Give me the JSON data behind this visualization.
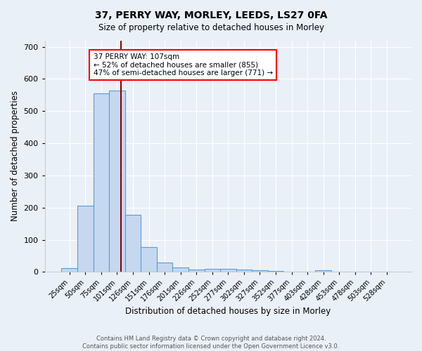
{
  "title1": "37, PERRY WAY, MORLEY, LEEDS, LS27 0FA",
  "title2": "Size of property relative to detached houses in Morley",
  "xlabel": "Distribution of detached houses by size in Morley",
  "ylabel": "Number of detached properties",
  "bin_labels": [
    "25sqm",
    "50sqm",
    "75sqm",
    "101sqm",
    "126sqm",
    "151sqm",
    "176sqm",
    "201sqm",
    "226sqm",
    "252sqm",
    "277sqm",
    "302sqm",
    "327sqm",
    "352sqm",
    "377sqm",
    "403sqm",
    "428sqm",
    "453sqm",
    "478sqm",
    "503sqm",
    "528sqm"
  ],
  "bar_heights": [
    12,
    205,
    555,
    565,
    178,
    78,
    30,
    14,
    7,
    10,
    10,
    8,
    5,
    4,
    0,
    0,
    5,
    0,
    0,
    0,
    0
  ],
  "bar_color": "#c5d8f0",
  "bar_edge_color": "#5b9bd5",
  "vline_color": "#8b0000",
  "annotation_text": "37 PERRY WAY: 107sqm\n← 52% of detached houses are smaller (855)\n47% of semi-detached houses are larger (771) →",
  "annotation_box_color": "white",
  "annotation_box_edge_color": "red",
  "ylim": [
    0,
    720
  ],
  "yticks": [
    0,
    100,
    200,
    300,
    400,
    500,
    600,
    700
  ],
  "bg_color": "#eaf0f8",
  "grid_color": "white",
  "footer": "Contains HM Land Registry data © Crown copyright and database right 2024.\nContains public sector information licensed under the Open Government Licence v3.0.",
  "title1_fontsize": 10,
  "title2_fontsize": 8.5,
  "xlabel_fontsize": 8.5,
  "ylabel_fontsize": 8.5,
  "tick_fontsize": 7,
  "annotation_fontsize": 7.5,
  "footer_fontsize": 6
}
